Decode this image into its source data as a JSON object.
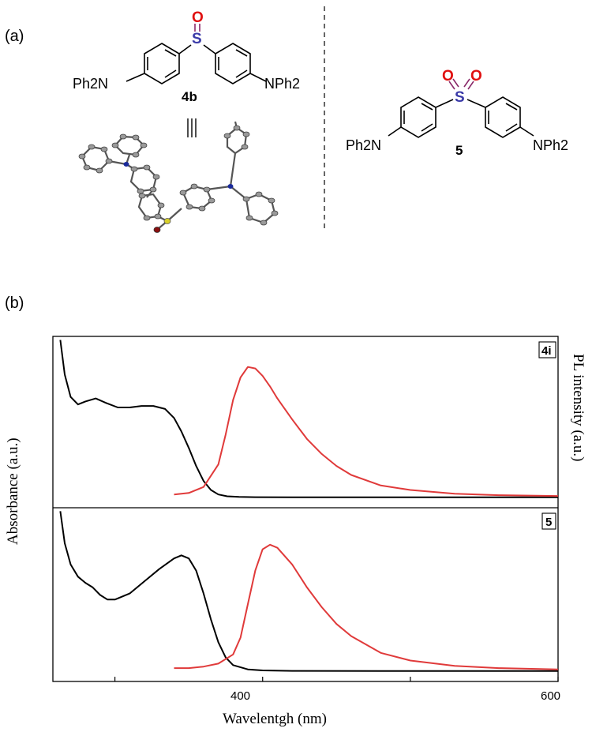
{
  "panel_a": {
    "label": "(a)",
    "compound_4b": {
      "id": "4b",
      "left_group": "Ph2N",
      "right_group": "NPh2",
      "sulfur": "S",
      "oxygen": "O"
    },
    "compound_5": {
      "id": "5",
      "left_group": "Ph2N",
      "right_group": "NPh2",
      "sulfur": "S",
      "oxygen_1": "O",
      "oxygen_2": "O"
    }
  },
  "panel_b": {
    "label": "(b)"
  },
  "chart_data": {
    "type": "line",
    "xlabel": "Wavelentgh (nm)",
    "ylabel_left": "Absorbance (a.u.)",
    "ylabel_right": "PL intensity (a.u.)",
    "xlim": [
      258,
      600
    ],
    "xticks": [
      400,
      600
    ],
    "xtick_labels": [
      "400",
      "600"
    ],
    "minor_xticks": [
      300,
      500
    ],
    "ylim": [
      0,
      1
    ],
    "colors": {
      "absorbance": "#000000",
      "pl": "#e03a3a"
    },
    "panels": [
      {
        "tag": "4i",
        "series": [
          {
            "role": "absorbance",
            "x": [
              263,
              266,
              270,
              275,
              280,
              287,
              294,
              302,
              310,
              318,
              326,
              334,
              340,
              345,
              350,
              355,
              360,
              365,
              370,
              376,
              384,
              395,
              420,
              480,
              560,
              600
            ],
            "y": [
              1.05,
              0.82,
              0.67,
              0.62,
              0.64,
              0.66,
              0.63,
              0.6,
              0.6,
              0.61,
              0.61,
              0.59,
              0.53,
              0.44,
              0.33,
              0.21,
              0.11,
              0.05,
              0.02,
              0.008,
              0.004,
              0.002,
              0.001,
              0.001,
              0.001,
              0.001
            ]
          },
          {
            "role": "pl",
            "x": [
              340,
              350,
              360,
              370,
              375,
              380,
              385,
              390,
              395,
              400,
              405,
              410,
              420,
              430,
              440,
              450,
              460,
              480,
              500,
              530,
              560,
              600
            ],
            "y": [
              0.02,
              0.03,
              0.07,
              0.22,
              0.42,
              0.65,
              0.8,
              0.87,
              0.86,
              0.81,
              0.74,
              0.66,
              0.52,
              0.39,
              0.29,
              0.21,
              0.15,
              0.08,
              0.05,
              0.025,
              0.015,
              0.01
            ]
          }
        ]
      },
      {
        "tag": "5",
        "series": [
          {
            "role": "absorbance",
            "x": [
              263,
              266,
              270,
              275,
              280,
              285,
              290,
              295,
              300,
              310,
              320,
              330,
              340,
              345,
              350,
              355,
              360,
              365,
              370,
              375,
              380,
              390,
              400,
              420,
              480,
              600
            ],
            "y": [
              1.05,
              0.84,
              0.7,
              0.62,
              0.58,
              0.55,
              0.5,
              0.47,
              0.47,
              0.51,
              0.59,
              0.67,
              0.74,
              0.76,
              0.74,
              0.66,
              0.51,
              0.34,
              0.19,
              0.09,
              0.04,
              0.012,
              0.005,
              0.002,
              0.001,
              0.001
            ]
          },
          {
            "role": "pl",
            "x": [
              340,
              350,
              360,
              370,
              380,
              385,
              390,
              395,
              400,
              405,
              410,
              420,
              430,
              440,
              450,
              460,
              480,
              500,
              530,
              560,
              600
            ],
            "y": [
              0.02,
              0.02,
              0.03,
              0.05,
              0.11,
              0.22,
              0.44,
              0.66,
              0.8,
              0.83,
              0.81,
              0.7,
              0.55,
              0.42,
              0.31,
              0.23,
              0.12,
              0.07,
              0.035,
              0.02,
              0.012
            ]
          }
        ]
      }
    ]
  }
}
